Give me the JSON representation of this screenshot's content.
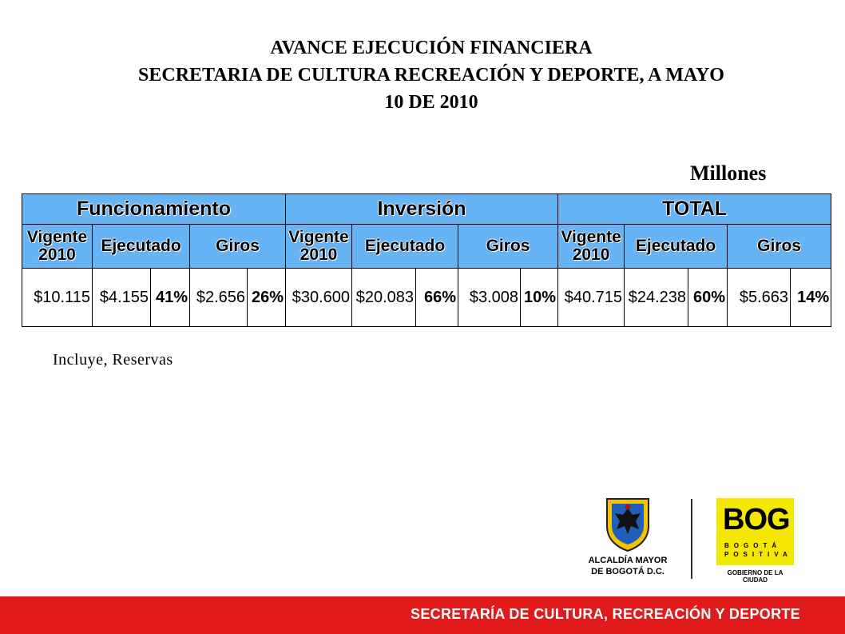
{
  "title": {
    "line1": "AVANCE EJECUCIÓN FINANCIERA",
    "line2": "SECRETARIA DE CULTURA RECREACIÓN Y DEPORTE,  A MAYO",
    "line3": "10 DE 2010"
  },
  "unit_label": "Millones",
  "table": {
    "groups": [
      "Funcionamiento",
      "Inversión",
      "TOTAL"
    ],
    "subheaders": {
      "vigente_line1": "Vigente",
      "vigente_line2": "2010",
      "ejecutado": "Ejecutado",
      "giros": "Giros"
    },
    "funcionamiento": {
      "vigente": "$10.115",
      "ejecutado": "$4.155",
      "ejecutado_pct": "41%",
      "giros": "$2.656",
      "giros_pct": "26%"
    },
    "inversion": {
      "vigente": "$30.600",
      "ejecutado": "$20.083",
      "ejecutado_pct": "66%",
      "giros": "$3.008",
      "giros_pct": "10%"
    },
    "total": {
      "vigente": "$40.715",
      "ejecutado": "$24.238",
      "ejecutado_pct": "60%",
      "giros": "$5.663",
      "giros_pct": "14%"
    }
  },
  "note": "Incluye, Reservas",
  "logos": {
    "alcaldia_line1": "ALCALDÍA MAYOR",
    "alcaldia_line2": "DE BOGOTÁ D.C.",
    "bog_mark": "BOG",
    "bog_line1": "BOGOTÁ",
    "bog_line2": "POSITIVA",
    "bog_caption": "GOBIERNO DE LA CIUDAD"
  },
  "footer": "SECRETARÍA DE CULTURA, RECREACIÓN Y DEPORTE",
  "colors": {
    "header_blue": "#66b3f5",
    "footer_red": "#e11b1b",
    "bog_yellow": "#f4e700"
  }
}
